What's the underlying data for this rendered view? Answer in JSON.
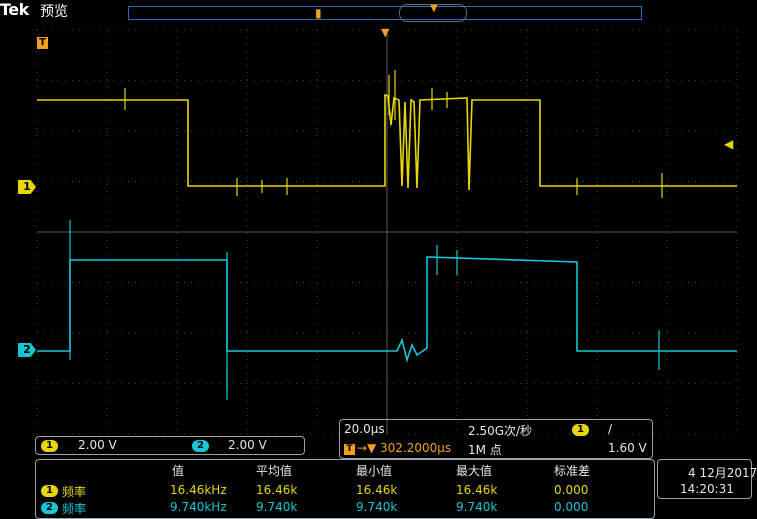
{
  "header": {
    "brand": "Tek",
    "mode": "预览"
  },
  "markers": {
    "ch1": "1",
    "ch2": "2",
    "trigger": "T"
  },
  "vertical": {
    "ch1": {
      "badge": "1",
      "scale": "2.00 V"
    },
    "ch2": {
      "badge": "2",
      "scale": "2.00 V"
    }
  },
  "horizontal": {
    "timebase": "20.0µs",
    "sample_rate": "2.50G次/秒",
    "trigger_delay": "302.2000µs",
    "record_length": "1M 点",
    "trigger_source": "1",
    "trigger_slope": "/",
    "trigger_level": "1.60 V"
  },
  "measurements": {
    "headers": [
      "值",
      "平均值",
      "最小值",
      "最大值",
      "标准差"
    ],
    "rows": [
      {
        "badge": "1",
        "label": "频率",
        "value": "16.46kHz",
        "mean": "16.46k",
        "min": "16.46k",
        "max": "16.46k",
        "std": "0.000"
      },
      {
        "badge": "2",
        "label": "频率",
        "value": "9.740kHz",
        "mean": "9.740k",
        "min": "9.740k",
        "max": "9.740k",
        "std": "0.000"
      }
    ]
  },
  "datetime": {
    "date": "4 12月2017",
    "time": "14:20:31"
  },
  "colors": {
    "ch1": "#e8d60c",
    "ch2": "#16c6d5",
    "trigger": "#f0a020",
    "grid": "#5a5a5a"
  }
}
